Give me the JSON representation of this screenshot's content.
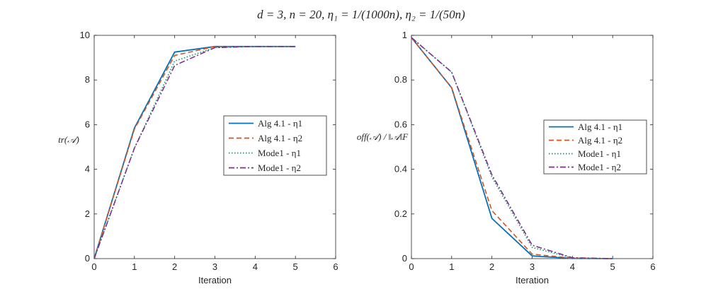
{
  "figure_title": "d = 3, n = 20, η₁ = 1/(1000n), η₂ = 1/(50n)",
  "colors": {
    "alg41_eta1": "#0072bd",
    "alg41_eta2": "#d95319",
    "mode1_eta1": "#1b9e77",
    "mode1_eta2": "#7e2f8e",
    "axis": "#262626"
  },
  "chart_data": [
    {
      "type": "line",
      "title": "",
      "xlabel": "Iteration",
      "ylabel": "tr(𝒜)",
      "xlim": [
        0,
        6
      ],
      "ylim": [
        0,
        10
      ],
      "xticks": [
        "0",
        "1",
        "2",
        "3",
        "4",
        "5",
        "6"
      ],
      "yticks": [
        "0",
        "2",
        "4",
        "6",
        "8",
        "10"
      ],
      "legend_position": "center-right",
      "x": [
        0,
        1,
        2,
        3,
        4,
        5
      ],
      "series": [
        {
          "name": "Alg 4.1 - η1",
          "style": "solid",
          "values": [
            0,
            5.85,
            9.25,
            9.5,
            9.5,
            9.5
          ]
        },
        {
          "name": "Alg 4.1 - η2",
          "style": "dashed",
          "values": [
            0,
            5.8,
            9.1,
            9.5,
            9.5,
            9.5
          ]
        },
        {
          "name": "Mode1 - η1",
          "style": "dotted",
          "values": [
            0,
            4.95,
            8.85,
            9.45,
            9.5,
            9.5
          ]
        },
        {
          "name": "Mode1 - η2",
          "style": "dashdot",
          "values": [
            0,
            4.95,
            8.65,
            9.45,
            9.5,
            9.5
          ]
        }
      ]
    },
    {
      "type": "line",
      "title": "",
      "xlabel": "Iteration",
      "ylabel": "off(𝒜) / ‖𝒜‖F",
      "xlim": [
        0,
        6
      ],
      "ylim": [
        0,
        1
      ],
      "xticks": [
        "0",
        "1",
        "2",
        "3",
        "4",
        "5",
        "6"
      ],
      "yticks": [
        "0",
        "0.2",
        "0.4",
        "0.6",
        "0.8",
        "1"
      ],
      "legend_position": "top-right",
      "x": [
        0,
        1,
        2,
        3,
        4,
        5
      ],
      "series": [
        {
          "name": "Alg 4.1 - η1",
          "style": "solid",
          "values": [
            0.99,
            0.765,
            0.18,
            0.012,
            0.001,
            0.0
          ]
        },
        {
          "name": "Alg 4.1 - η2",
          "style": "dashed",
          "values": [
            0.99,
            0.765,
            0.215,
            0.02,
            0.002,
            0.0
          ]
        },
        {
          "name": "Mode1 - η1",
          "style": "dotted",
          "values": [
            0.99,
            0.835,
            0.365,
            0.05,
            0.003,
            0.0
          ]
        },
        {
          "name": "Mode1 - η2",
          "style": "dashdot",
          "values": [
            0.99,
            0.835,
            0.375,
            0.06,
            0.004,
            0.0
          ]
        }
      ]
    }
  ]
}
